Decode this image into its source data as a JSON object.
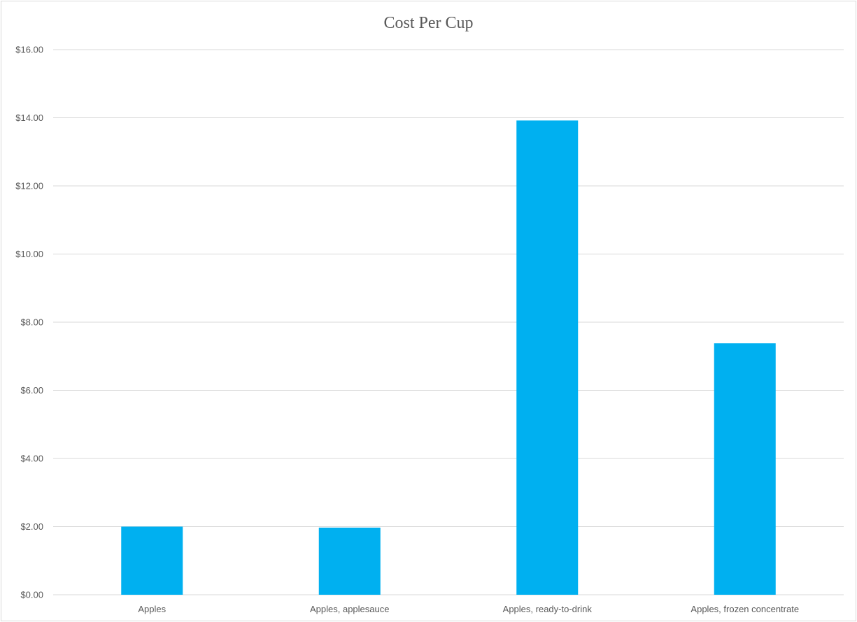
{
  "chart_data": {
    "type": "bar",
    "title": "Cost Per Cup",
    "xlabel": "",
    "ylabel": "",
    "categories": [
      "Apples",
      "Apples, applesauce",
      "Apples, ready-to-drink",
      "Apples, frozen concentrate"
    ],
    "values": [
      2.0,
      1.97,
      13.92,
      7.38
    ],
    "ylim": [
      0,
      16
    ],
    "yticks": [
      0,
      2,
      4,
      6,
      8,
      10,
      12,
      14,
      16
    ],
    "ytick_labels": [
      "$0.00",
      "$2.00",
      "$4.00",
      "$6.00",
      "$8.00",
      "$10.00",
      "$12.00",
      "$14.00",
      "$16.00"
    ],
    "grid": true,
    "legend": "none",
    "bar_color": "#00b0f0",
    "grid_color": "#d9d9d9"
  }
}
